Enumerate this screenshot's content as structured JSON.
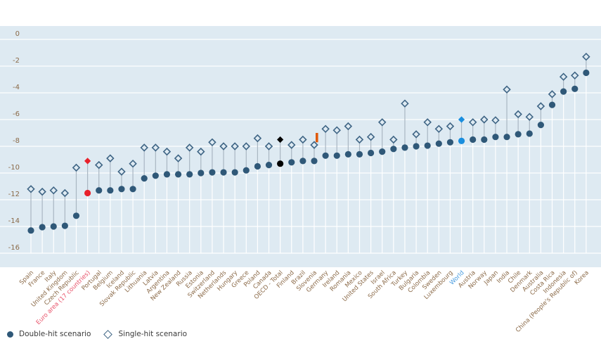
{
  "chart_data": {
    "type": "dot-range",
    "title": "",
    "xlabel": "",
    "ylabel": "",
    "ylim": [
      -17,
      0.6
    ],
    "yticks": [
      0,
      -2,
      -4,
      -6,
      -8,
      -10,
      -12,
      -14,
      -16
    ],
    "grid": "horizontal",
    "legend_placement": "bottom-left",
    "categories": [
      "Spain",
      "France",
      "Italy",
      "United Kingdom",
      "Czech Republic",
      "Euro area (17 countries)",
      "Portugal",
      "Belgium",
      "Iceland",
      "Slovak Republic",
      "Lithuania",
      "Latvia",
      "Argentina",
      "New Zealand",
      "Russia",
      "Estonia",
      "Switzerland",
      "Netherlands",
      "Hungary",
      "Greece",
      "Poland",
      "Canada",
      "OECD - Total",
      "Finland",
      "Brazil",
      "Slovenia",
      "Germany",
      "Ireland",
      "Romania",
      "Mexico",
      "United States",
      "Israel",
      "South Africa",
      "Turkey",
      "Bulgaria",
      "Colombia",
      "Sweden",
      "Luxembourg",
      "World",
      "Austria",
      "Norway",
      "Japan",
      "India",
      "Chile",
      "Denmark",
      "Australia",
      "Costa Rica",
      "Indonesia",
      "China (People's Republic of)",
      "Korea"
    ],
    "series": [
      {
        "name": "Double-hit scenario",
        "marker": "circle",
        "values": [
          -14.3,
          -14.05,
          -14.0,
          -13.95,
          -13.2,
          -11.5,
          -11.3,
          -11.3,
          -11.2,
          -11.2,
          -10.4,
          -10.2,
          -10.1,
          -10.1,
          -10.1,
          -10.0,
          -9.95,
          -9.95,
          -9.95,
          -9.8,
          -9.5,
          -9.4,
          -9.3,
          -9.2,
          -9.1,
          -9.1,
          -8.7,
          -8.7,
          -8.6,
          -8.6,
          -8.5,
          -8.4,
          -8.2,
          -8.1,
          -8.0,
          -7.95,
          -7.8,
          -7.7,
          -7.6,
          -7.5,
          -7.5,
          -7.3,
          -7.3,
          -7.1,
          -7.05,
          -6.4,
          -4.9,
          -3.9,
          -3.7,
          -2.5
        ]
      },
      {
        "name": "Single-hit scenario",
        "marker": "diamond-open",
        "values": [
          -11.2,
          -11.4,
          -11.3,
          -11.5,
          -9.6,
          -9.1,
          -9.4,
          -8.9,
          -9.9,
          -9.3,
          -8.1,
          -8.1,
          -8.4,
          -8.9,
          -8.1,
          -8.4,
          -7.7,
          -8.0,
          -8.0,
          -8.0,
          -7.4,
          -8.0,
          -7.5,
          -7.9,
          -7.5,
          -7.9,
          -6.7,
          -6.8,
          -6.5,
          -7.5,
          -7.3,
          -6.2,
          -7.5,
          -4.8,
          -7.1,
          -6.2,
          -6.7,
          -6.5,
          -6.0,
          -6.2,
          -6.0,
          -6.05,
          -3.75,
          -5.6,
          -5.8,
          -5.0,
          -4.1,
          -2.8,
          -2.7,
          -1.3
        ]
      }
    ],
    "highlight_bar": {
      "category": "Slovenia",
      "range": [
        -7.7,
        -7.0
      ],
      "color": "#e05a0c"
    },
    "highlights": {
      "Euro area (17 countries)": "#e8212b",
      "OECD - Total": "#000000",
      "World": "#1a8ede"
    }
  },
  "colors": {
    "plot_background": "#deeaf2",
    "dot": "#2f5878",
    "diamond": "#3f6585",
    "connector": "#a9b6c2",
    "tick_label": "#8b6a48",
    "euro_label": "#e8536a",
    "world_label": "#4a9de0"
  },
  "legend": {
    "double_hit": "Double-hit scenario",
    "single_hit": "Single-hit scenario"
  }
}
